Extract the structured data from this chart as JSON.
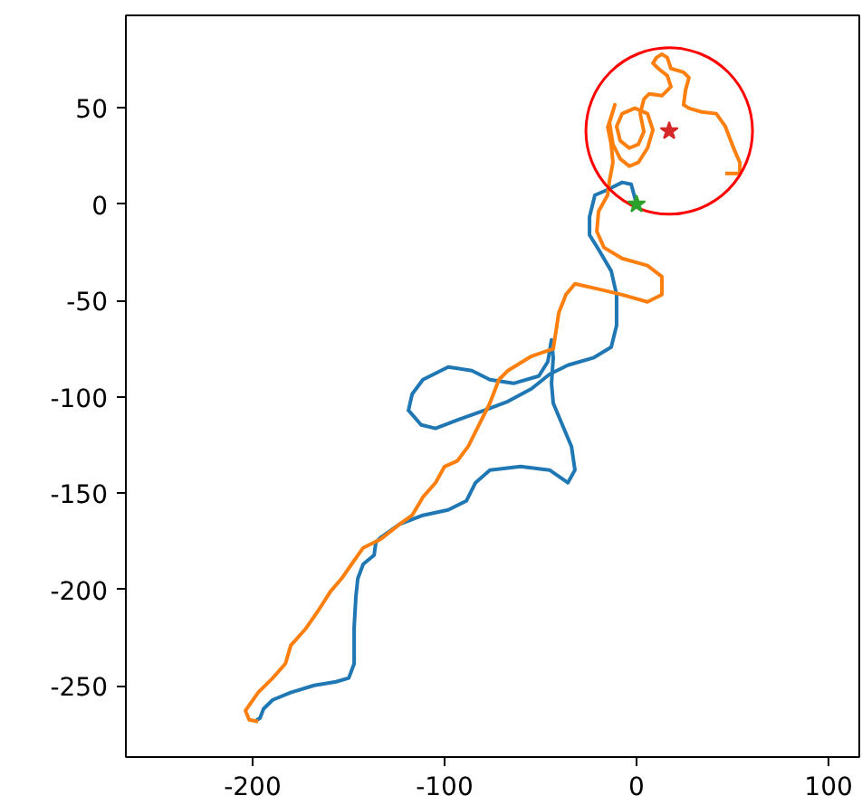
{
  "chart_data": {
    "type": "line",
    "xlim": [
      -266,
      116
    ],
    "ylim": [
      -287,
      98
    ],
    "xticks": [
      -200,
      -100,
      0,
      100
    ],
    "yticks": [
      -250,
      -200,
      -150,
      -100,
      -50,
      0,
      50
    ],
    "grid": false,
    "series": [
      {
        "color": "#1f77b4",
        "x": [
          0,
          -2.8,
          -7.5,
          -15.1,
          -21.7,
          -24.5,
          -24.5,
          -19.8,
          -13.2,
          -10.4,
          -10.4,
          -13.2,
          -22.6,
          -35.8,
          -45.3,
          -54.7,
          -67,
          -79.2,
          -92.4,
          -104.7,
          -112.2,
          -118.8,
          -116.9,
          -111.3,
          -98.1,
          -85.8,
          -76.4,
          -64.1,
          -50.9,
          -46.2,
          -44.3,
          -43.4,
          -44.3,
          -43.4,
          -33.9,
          -32.1,
          -35.8,
          -45.3,
          -60.4,
          -76.4,
          -83.9,
          -88.6,
          -98.1,
          -111.3,
          -123.5,
          -133,
          -135.8,
          -136.7,
          -142.4,
          -145.2,
          -146.2,
          -147.1,
          -147.1,
          -149.9,
          -156.5,
          -167.9,
          -180.1,
          -189.5,
          -194.3,
          -196.1,
          -199
        ],
        "values": [
          0,
          10.3,
          11.3,
          7.5,
          4.7,
          -6.6,
          -16,
          -23.5,
          -34.7,
          -47,
          -62.9,
          -74.2,
          -79.8,
          -83.6,
          -88.3,
          -95.8,
          -102.4,
          -107,
          -111.7,
          -116.4,
          -114.6,
          -107,
          -98.6,
          -91.1,
          -84.5,
          -86.4,
          -91.1,
          -93,
          -89.2,
          -81.7,
          -70.4,
          -79.8,
          -93,
          -103.3,
          -125.8,
          -138,
          -144.6,
          -138,
          -136.2,
          -138,
          -144.6,
          -154,
          -158.7,
          -161.5,
          -166.2,
          -172.8,
          -175.6,
          -182.2,
          -186.9,
          -194.4,
          -203.8,
          -219.7,
          -238.5,
          -246,
          -247.9,
          -249.8,
          -253.5,
          -257.3,
          -262,
          -266.7,
          -268.6
        ]
      },
      {
        "color": "#ff7f0e",
        "x": [
          46.2,
          53.8,
          53.8,
          50.9,
          46.2,
          41.5,
          33.9,
          27.3,
          24.5,
          25.5,
          27.3,
          24.5,
          17.9,
          16,
          13.2,
          10.4,
          8.5,
          11.3,
          16,
          17.9,
          13.2,
          6.6,
          3.8,
          1.9,
          3.8,
          0.9,
          -3.8,
          -8.5,
          -10.4,
          -7.5,
          -0.9,
          5.7,
          8.5,
          5.7,
          0.9,
          -3.8,
          -8.5,
          -12.3,
          -14.1,
          -11.3,
          -15,
          -13.2,
          -12.3,
          -14.1,
          -15.1,
          -19.8,
          -20.7,
          -17,
          -7.5,
          5.7,
          13.2,
          13.2,
          5.7,
          -7.5,
          -19.8,
          -32.1,
          -36.8,
          -40.5,
          -43.4,
          -54.7,
          -67,
          -71.7,
          -76.4,
          -83,
          -87.7,
          -93.4,
          -100,
          -104.7,
          -111.3,
          -116.9,
          -123.5,
          -133,
          -142.4,
          -147.1,
          -153.7,
          -159.4,
          -166,
          -172.6,
          -180.1,
          -182.9,
          -189.5,
          -197.1,
          -203.7,
          -201.8,
          -197.1
        ],
        "values": [
          16,
          16,
          21.6,
          28.2,
          40.4,
          47,
          47.9,
          49.8,
          51.6,
          59.2,
          65.7,
          68.5,
          70.4,
          76.1,
          77.9,
          76.1,
          73.2,
          70.4,
          66.7,
          61,
          56.3,
          57.3,
          54.5,
          47,
          37.6,
          31,
          29.1,
          32.9,
          40.4,
          47,
          49.8,
          47,
          38.5,
          29.1,
          21.6,
          19.7,
          23.5,
          31,
          42.3,
          51.6,
          40,
          31,
          21.6,
          12.2,
          4.7,
          -3.8,
          -14.1,
          -22.5,
          -28.2,
          -31.9,
          -37.6,
          -47,
          -50.7,
          -47,
          -44.1,
          -41.3,
          -47,
          -56.3,
          -75.1,
          -78.9,
          -86.4,
          -91.1,
          -103.3,
          -116.4,
          -125.8,
          -133.3,
          -136.2,
          -144.6,
          -152.1,
          -161.5,
          -166.2,
          -173.7,
          -178.4,
          -185,
          -194.4,
          -201,
          -211.3,
          -220.7,
          -229.1,
          -238.5,
          -246,
          -253.5,
          -262.9,
          -267.6,
          -268.6
        ]
      },
      {
        "type": "bubble",
        "color": "#ff0000",
        "x": [
          17
        ],
        "values": [
          38
        ],
        "sizes": [
          1
        ]
      },
      {
        "type": "scatter",
        "marker": "star",
        "color": "#d62728",
        "x": [
          17
        ],
        "values": [
          38
        ]
      },
      {
        "type": "scatter",
        "marker": "star",
        "color": "#2ca02c",
        "x": [
          0
        ],
        "values": [
          0
        ]
      }
    ]
  }
}
